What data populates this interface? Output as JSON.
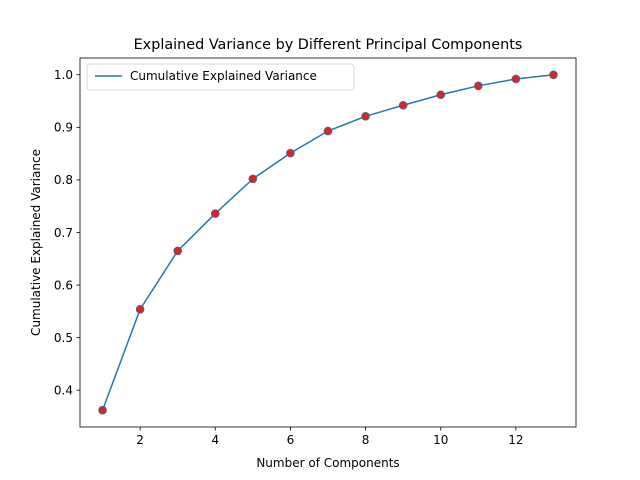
{
  "chart_data": {
    "type": "line",
    "title": "Explained Variance by Different Principal Components",
    "xlabel": "Number of Components",
    "ylabel": "Cumulative Explained Variance",
    "x": [
      1,
      2,
      3,
      4,
      5,
      6,
      7,
      8,
      9,
      10,
      11,
      12,
      13
    ],
    "series": [
      {
        "name": "Cumulative Explained Variance",
        "values": [
          0.362,
          0.554,
          0.665,
          0.736,
          0.802,
          0.851,
          0.893,
          0.921,
          0.942,
          0.962,
          0.979,
          0.992,
          1.0
        ],
        "color": "#1f77b4",
        "marker_color": "#d62728"
      }
    ],
    "xticks": [
      2,
      4,
      6,
      8,
      10,
      12
    ],
    "yticks": [
      0.4,
      0.5,
      0.6,
      0.7,
      0.8,
      0.9,
      1.0
    ],
    "xlim": [
      0.4,
      13.6
    ],
    "ylim": [
      0.3301,
      1.0319
    ],
    "grid": false,
    "legend_position": "upper-left"
  }
}
